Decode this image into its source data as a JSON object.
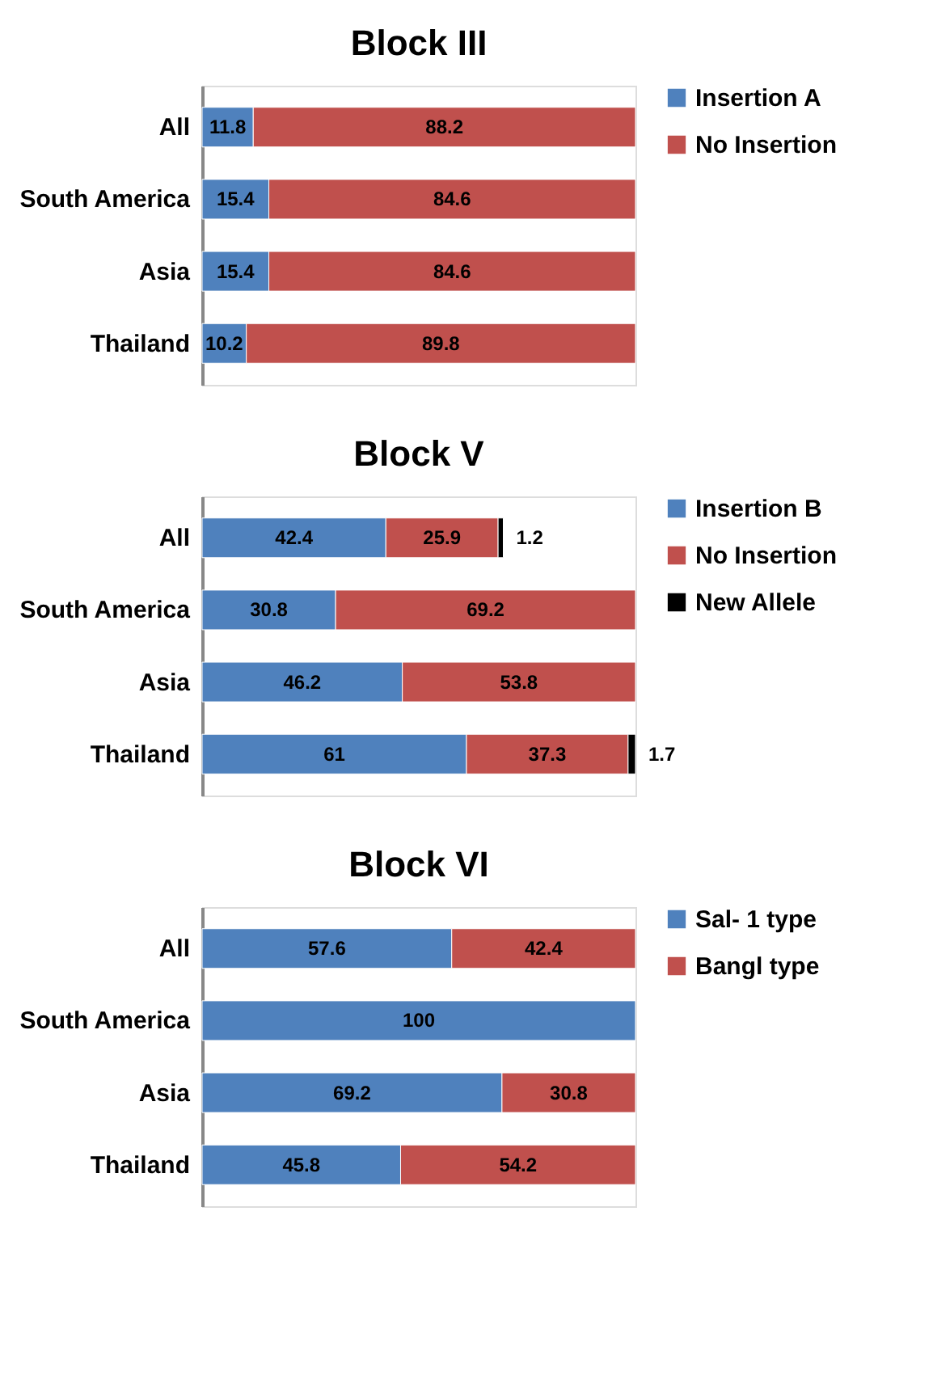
{
  "chart_data": [
    {
      "type": "bar",
      "orientation": "horizontal",
      "stacked": true,
      "title": "Block III",
      "categories": [
        "All",
        "South America",
        "Asia",
        "Thailand"
      ],
      "data_labels": true,
      "legend": "right",
      "tick_labels": "y",
      "series": [
        {
          "name": "Insertion A",
          "color": "#4f81bd",
          "values": [
            11.8,
            15.4,
            15.4,
            10.2
          ]
        },
        {
          "name": "No Insertion",
          "color": "#c0504d",
          "values": [
            88.2,
            84.6,
            84.6,
            89.8
          ]
        }
      ]
    },
    {
      "type": "bar",
      "orientation": "horizontal",
      "stacked": true,
      "title": "Block V",
      "categories": [
        "All",
        "South America",
        "Asia",
        "Thailand"
      ],
      "data_labels": true,
      "legend": "right",
      "tick_labels": "y",
      "series": [
        {
          "name": "Insertion B",
          "color": "#4f81bd",
          "values": [
            42.4,
            30.8,
            46.2,
            61
          ]
        },
        {
          "name": "No Insertion",
          "color": "#c0504d",
          "values": [
            25.9,
            69.2,
            53.8,
            37.3
          ]
        },
        {
          "name": "New Allele",
          "color": "#000000",
          "values": [
            1.2,
            null,
            null,
            1.7
          ]
        }
      ]
    },
    {
      "type": "bar",
      "orientation": "horizontal",
      "stacked": true,
      "title": "Block VI",
      "categories": [
        "All",
        "South America",
        "Asia",
        "Thailand"
      ],
      "data_labels": true,
      "legend": "right",
      "tick_labels": "y",
      "series": [
        {
          "name": "Sal- 1 type",
          "color": "#4f81bd",
          "values": [
            57.6,
            100,
            69.2,
            45.8
          ]
        },
        {
          "name": "Bangl type",
          "color": "#c0504d",
          "values": [
            42.4,
            null,
            30.8,
            54.2
          ]
        }
      ]
    }
  ]
}
